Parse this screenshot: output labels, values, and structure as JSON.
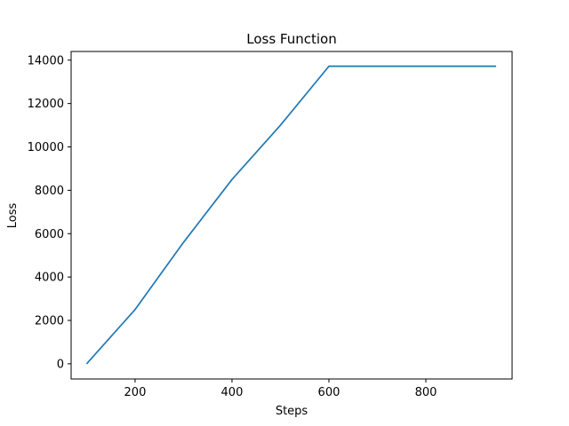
{
  "chart_data": {
    "type": "line",
    "title": "Loss Function",
    "xlabel": "Steps",
    "ylabel": "Loss",
    "xlim": [
      68,
      978
    ],
    "ylim": [
      -700,
      14400
    ],
    "xticks": [
      200,
      400,
      600,
      800
    ],
    "yticks": [
      0,
      2000,
      4000,
      6000,
      8000,
      10000,
      12000,
      14000
    ],
    "grid": false,
    "series": [
      {
        "color": "#1f77b4",
        "x": [
          100,
          200,
          300,
          400,
          500,
          600,
          700,
          800,
          945
        ],
        "y": [
          0,
          2500,
          5600,
          8500,
          11000,
          13720,
          13720,
          13720,
          13720
        ]
      }
    ]
  }
}
